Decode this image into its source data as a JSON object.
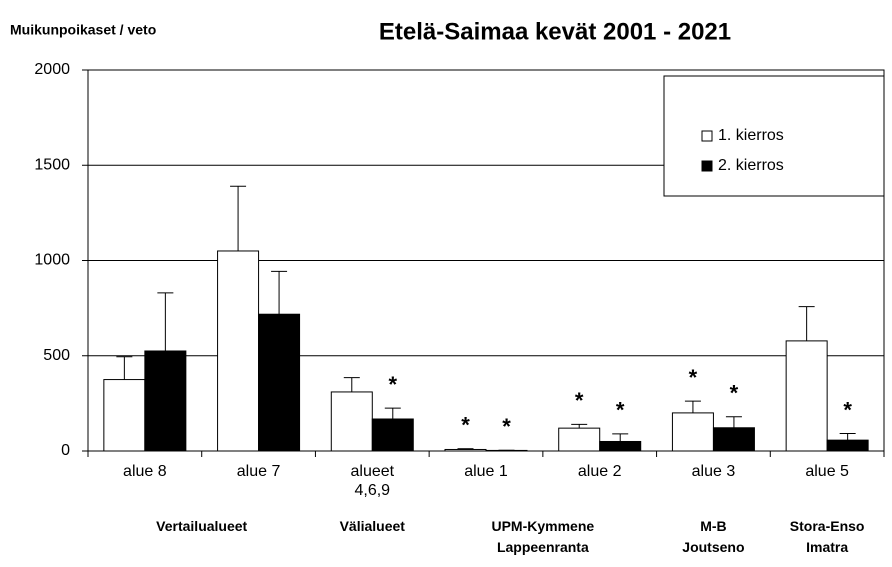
{
  "chart_data": {
    "type": "bar",
    "title": "Etelä-Saimaa kevät 2001 - 2021",
    "y_label": "Muikunpoikaset / veto",
    "categories": [
      "alue 8",
      "alue 7",
      "alueet 4,6,9",
      "alue 1",
      "alue 2",
      "alue 3",
      "alue 5"
    ],
    "groups": [
      {
        "label": "Vertailualueet",
        "categories": [
          0,
          1
        ]
      },
      {
        "label": "Välialueet",
        "categories": [
          2,
          2
        ]
      },
      {
        "label": "UPM-Kymmene Lappeenranta",
        "categories": [
          3,
          4
        ]
      },
      {
        "label": "M-B Joutseno",
        "categories": [
          5,
          5
        ]
      },
      {
        "label": "Stora-Enso Imatra",
        "categories": [
          6,
          6
        ]
      }
    ],
    "series": [
      {
        "name": "1. kierros",
        "color": "#ffffff",
        "values": [
          375,
          1050,
          310,
          8,
          120,
          200,
          578
        ],
        "errors": [
          120,
          340,
          75,
          4,
          20,
          62,
          180
        ]
      },
      {
        "name": "2. kierros",
        "color": "#000000",
        "values": [
          525,
          718,
          168,
          3,
          50,
          122,
          57
        ],
        "errors": [
          305,
          225,
          57,
          1,
          40,
          58,
          35
        ]
      }
    ],
    "annotations": [
      {
        "text": "*",
        "series": 1,
        "category": 2
      },
      {
        "text": "*",
        "series": 0,
        "category": 3
      },
      {
        "text": "*",
        "series": 1,
        "category": 3
      },
      {
        "text": "*",
        "series": 0,
        "category": 4
      },
      {
        "text": "*",
        "series": 1,
        "category": 4
      },
      {
        "text": "*",
        "series": 0,
        "category": 5
      },
      {
        "text": "*",
        "series": 1,
        "category": 5
      },
      {
        "text": "*",
        "series": 1,
        "category": 6
      }
    ],
    "ylim": [
      0,
      2000
    ],
    "yticks": [
      0,
      500,
      1000,
      1500,
      2000
    ],
    "grid": true,
    "legend": "upper right"
  }
}
